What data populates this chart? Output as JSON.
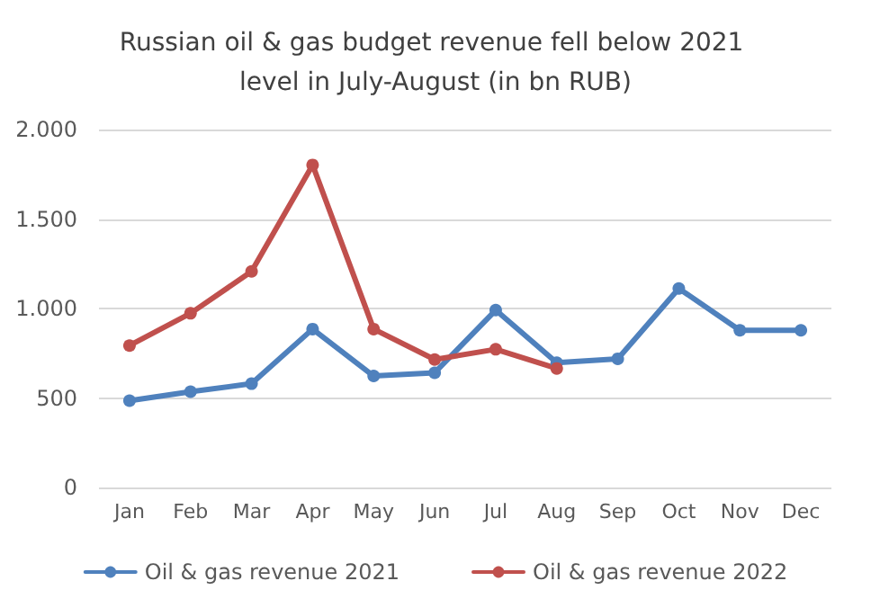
{
  "chart_data": {
    "type": "line",
    "title": "Russian oil & gas budget revenue fell below 2021 level in July-August (in bn RUB)",
    "categories": [
      "Jan",
      "Feb",
      "Mar",
      "Apr",
      "May",
      "Jun",
      "Jul",
      "Aug",
      "Sep",
      "Oct",
      "Nov",
      "Dec"
    ],
    "series": [
      {
        "name": "Oil & gas revenue 2021",
        "color": "#4f81bd",
        "values": [
          485,
          535,
          580,
          885,
          623,
          641,
          991,
          697,
          719,
          1112,
          878,
          878
        ]
      },
      {
        "name": "Oil & gas revenue 2022",
        "color": "#c0504d",
        "values": [
          793,
          973,
          1207,
          1802,
          885,
          715,
          772,
          665,
          null,
          null,
          null,
          null
        ]
      }
    ],
    "ylim": [
      0,
      2000
    ],
    "yticks": [
      0,
      500,
      {
        "value": 1000,
        "label": "1.000"
      },
      {
        "value": 1500,
        "label": "1.500"
      },
      {
        "value": 2000,
        "label": "2.000"
      }
    ],
    "grid": "y",
    "legend": "bottom",
    "marker": "circle",
    "line_style": "solid"
  }
}
